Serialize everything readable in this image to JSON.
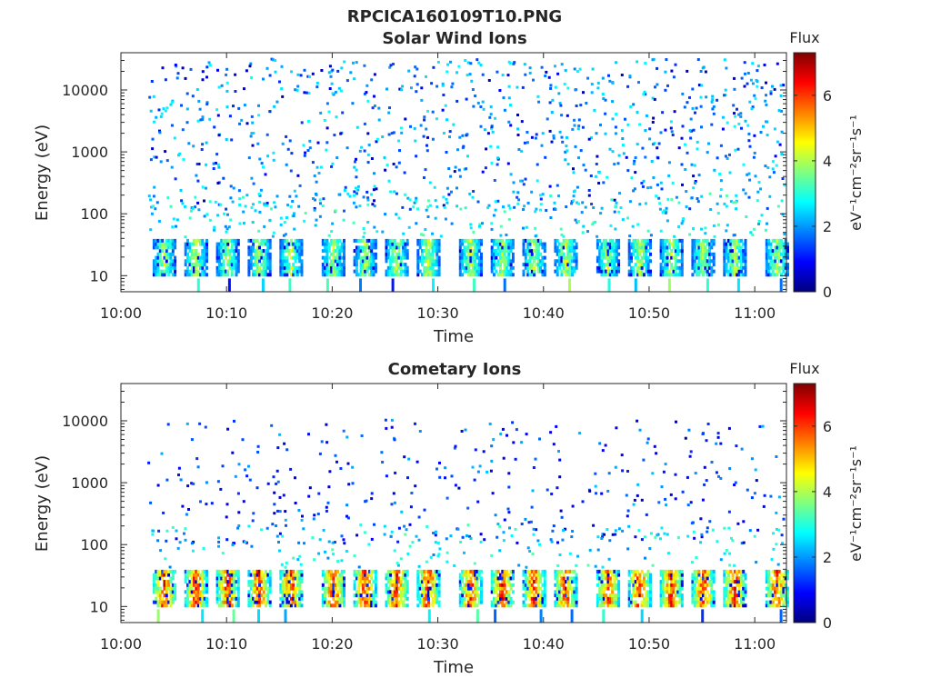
{
  "figure": {
    "title": "RPCICA160109T10.PNG"
  },
  "chart_data": [
    {
      "type": "heatmap",
      "title": "Solar Wind Ions",
      "xlabel": "Time",
      "ylabel": "Energy (eV)",
      "x_range": [
        "10:00",
        "11:03"
      ],
      "y_range": [
        5.5,
        40000
      ],
      "y_scale": "log",
      "x_ticks": [
        "10:00",
        "10:10",
        "10:20",
        "10:30",
        "10:40",
        "10:50",
        "11:00"
      ],
      "y_ticks": [
        "10",
        "100",
        "1000",
        "10000"
      ],
      "grid": false,
      "colorbar": {
        "title": "Flux",
        "label": "eV⁻¹cm⁻²sr⁻¹s⁻¹",
        "range": [
          0,
          7.3
        ],
        "ticks": [
          "0",
          "2",
          "4",
          "6"
        ],
        "colormap": "jet"
      },
      "features": {
        "sweep_bursts_low_energy": {
          "energy_range": [
            10,
            40
          ],
          "peak_flux": 4.3,
          "times": [
            "10:04",
            "10:07",
            "10:10",
            "10:13",
            "10:16",
            "10:20",
            "10:23",
            "10:26",
            "10:29",
            "10:33",
            "10:36",
            "10:39",
            "10:42",
            "10:46",
            "10:49",
            "10:52",
            "10:55",
            "10:58",
            "11:02"
          ]
        },
        "scattered_background": {
          "energy_range": [
            100,
            30000
          ],
          "typical_flux": 2.0
        }
      }
    },
    {
      "type": "heatmap",
      "title": "Cometary Ions",
      "xlabel": "Time",
      "ylabel": "Energy (eV)",
      "x_range": [
        "10:00",
        "11:03"
      ],
      "y_range": [
        5.5,
        40000
      ],
      "y_scale": "log",
      "x_ticks": [
        "10:00",
        "10:10",
        "10:20",
        "10:30",
        "10:40",
        "10:50",
        "11:00"
      ],
      "y_ticks": [
        "10",
        "100",
        "1000",
        "10000"
      ],
      "grid": false,
      "colorbar": {
        "title": "Flux",
        "label": "eV⁻¹cm⁻²sr⁻¹s⁻¹",
        "range": [
          0,
          7.3
        ],
        "ticks": [
          "0",
          "2",
          "4",
          "6"
        ],
        "colormap": "jet"
      },
      "features": {
        "sweep_bursts_low_energy": {
          "energy_range": [
            10,
            40
          ],
          "peak_flux": 6.5,
          "times": [
            "10:04",
            "10:07",
            "10:10",
            "10:13",
            "10:16",
            "10:20",
            "10:23",
            "10:26",
            "10:29",
            "10:33",
            "10:36",
            "10:39",
            "10:42",
            "10:46",
            "10:49",
            "10:52",
            "10:55",
            "10:58",
            "11:02"
          ]
        },
        "scattered_background": {
          "energy_range": [
            100,
            10000
          ],
          "typical_flux": 1.5
        }
      }
    }
  ]
}
